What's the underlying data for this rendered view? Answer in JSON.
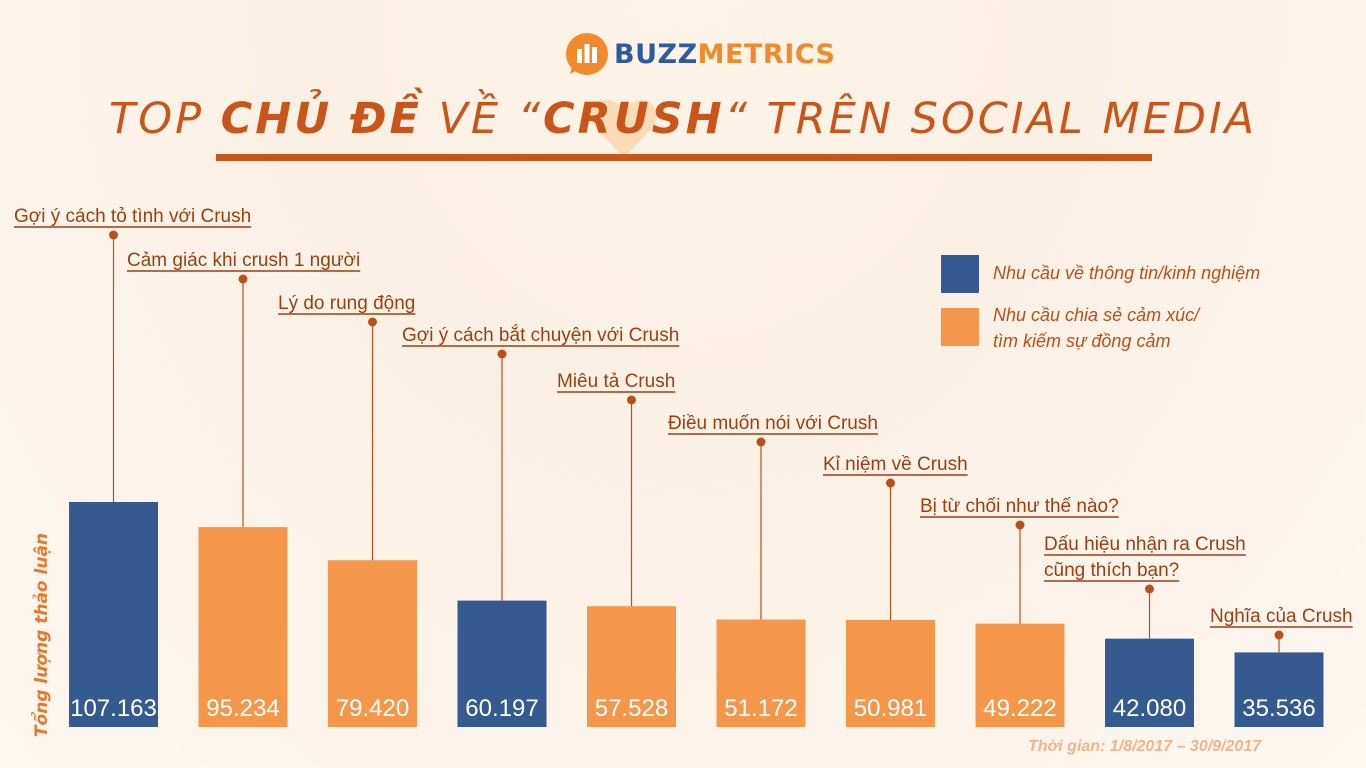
{
  "brand": {
    "part1": "BUZZ",
    "part2": "METRICS"
  },
  "title": {
    "pre": "TOP ",
    "bold1": "CHỦ ĐỀ",
    "mid": " VỀ “",
    "bold2": "CRUSH",
    "post": "“ TRÊN SOCIAL MEDIA"
  },
  "legend": [
    {
      "label": "Nhu cầu về thông tin/kinh nghiệm",
      "color": "#345a8f"
    },
    {
      "label": "Nhu cầu chia sẻ cảm xúc/\ntìm kiếm sự đồng cảm",
      "color": "#f5974a"
    }
  ],
  "footnote": "Thời gian: 1/8/2017 – 30/9/2017",
  "chart_data": {
    "type": "bar",
    "ylabel": "Tổng lượng thảo luận",
    "categories": [
      "Gợi ý cách tỏ tình với Crush",
      "Cảm giác khi crush 1 người",
      "Lý do rung động",
      "Gợi ý cách bắt chuyện với Crush",
      "Miêu tả Crush",
      "Điều muốn nói với Crush",
      "Kỉ niệm về Crush",
      "Bị từ chối như thế nào?",
      "Dấu hiệu nhận ra Crush cũng thích bạn?",
      "Nghĩa của Crush"
    ],
    "category_lines": [
      [
        "Gợi ý cách tỏ tình với Crush"
      ],
      [
        "Cảm giác khi crush 1 người"
      ],
      [
        "Lý do rung động"
      ],
      [
        "Gợi ý cách bắt chuyện với Crush"
      ],
      [
        "Miêu tả Crush"
      ],
      [
        "Điều muốn nói với Crush"
      ],
      [
        "Kỉ niệm về Crush"
      ],
      [
        "Bị từ chối như thế nào?"
      ],
      [
        "Dấu hiệu nhận ra Crush",
        "cũng thích bạn?"
      ],
      [
        "Nghĩa của Crush"
      ]
    ],
    "values": [
      107163,
      95234,
      79420,
      60197,
      57528,
      51172,
      50981,
      49222,
      42080,
      35536
    ],
    "value_labels": [
      "107.163",
      "95.234",
      "79.420",
      "60.197",
      "57.528",
      "51.172",
      "50.981",
      "49.222",
      "42.080",
      "35.536"
    ],
    "groups": [
      "info",
      "emotion",
      "emotion",
      "info",
      "emotion",
      "emotion",
      "emotion",
      "emotion",
      "info",
      "info"
    ],
    "colors": {
      "info": "#345a8f",
      "emotion": "#f5974a"
    }
  }
}
